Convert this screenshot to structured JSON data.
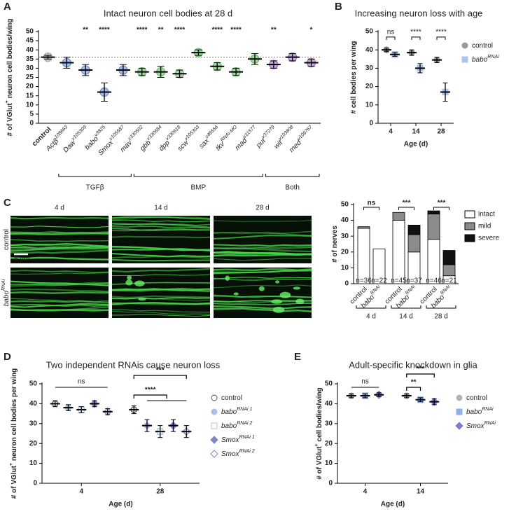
{
  "chart_data": [
    {
      "panel": "A",
      "type": "dotplot",
      "title": "Intact neuron cell bodies at 28 d",
      "ylabel": [
        "# of VGlut",
        "+",
        " neuron cell bodies/wing"
      ],
      "categories": [
        {
          "text": "control"
        },
        {
          "text": "Actβ",
          "sup": "108663"
        },
        {
          "text": "Daw",
          "sup": "v105309"
        },
        {
          "text": "babo",
          "sup": "v3825"
        },
        {
          "text": "Smox",
          "sup": "v105687"
        },
        {
          "text": "mav",
          "sup": "v330502"
        },
        {
          "text": "gbb",
          "sup": "v330684"
        },
        {
          "text": "dpp",
          "sup": "v330618"
        },
        {
          "text": "scw",
          "sup": "v105303"
        },
        {
          "text": "sax",
          "sup": "v46556"
        },
        {
          "text": "tkv",
          "sup": "RNAi-MO"
        },
        {
          "text": "mad",
          "sup": "v11577"
        },
        {
          "text": "put",
          "sup": "v37279"
        },
        {
          "text": "wit",
          "sup": "v103808"
        },
        {
          "text": "med",
          "sup": "v106767"
        }
      ],
      "values": [
        36,
        33,
        29,
        17,
        29,
        28,
        28,
        27,
        38.5,
        31,
        28,
        35,
        32,
        36,
        33
      ],
      "errors": [
        1,
        3,
        3,
        5,
        3,
        2,
        3,
        2,
        1.5,
        2,
        2,
        3,
        2,
        2,
        2
      ],
      "colors": [
        "#a6a6a6",
        "#6a8fd6",
        "#6a8fd6",
        "#6a8fd6",
        "#6a8fd6",
        "#6bbf6b",
        "#6bbf6b",
        "#6bbf6b",
        "#6bbf6b",
        "#6bbf6b",
        "#6bbf6b",
        "#6bbf6b",
        "#a66cc6",
        "#a66cc6",
        "#a66cc6"
      ],
      "significance": [
        null,
        null,
        "**",
        "****",
        null,
        "****",
        "**",
        "****",
        null,
        "****",
        "****",
        null,
        "**",
        null,
        "*"
      ],
      "groups": [
        {
          "label": "TGFβ",
          "color": "#5b7fc7"
        },
        {
          "label": "BMP",
          "color": "#5aa85a"
        },
        {
          "label": "Both",
          "color": "#9b59b6"
        }
      ],
      "reference_line": 36,
      "reference_color": "#e05050",
      "ylim": [
        0,
        50
      ],
      "yticks": [
        0,
        5,
        10,
        15,
        20,
        25,
        30,
        35,
        40,
        45,
        50
      ]
    },
    {
      "panel": "B",
      "type": "dotplot",
      "title": "Increasing neuron loss with age",
      "ylabel": "# cell bodies per wing",
      "xlabel": "Age (d)",
      "categories": [
        "4",
        "14",
        "28"
      ],
      "series": [
        {
          "name": "control",
          "color": "#9a9a9a",
          "marker": "circle",
          "values": [
            40,
            38.5,
            34.5
          ],
          "errors": [
            1,
            1.5,
            1.5
          ]
        },
        {
          "name": "babo",
          "name_sup": "RNAi",
          "color": "#a9c4ee",
          "marker": "square",
          "values": [
            37.5,
            30,
            17
          ],
          "errors": [
            1,
            2.5,
            5
          ]
        }
      ],
      "significance": [
        "ns",
        "****",
        "****"
      ],
      "ylim": [
        0,
        50
      ],
      "yticks": [
        0,
        10,
        20,
        30,
        40,
        50
      ]
    },
    {
      "panel": "C",
      "type": "stacked_bar",
      "ylabel": "# of nerves",
      "categories": [
        {
          "text": "control"
        },
        {
          "text": "babo",
          "sup": "RNAi"
        },
        {
          "text": "control"
        },
        {
          "text": "babo",
          "sup": "RNAi"
        },
        {
          "text": "control"
        },
        {
          "text": "babo",
          "sup": "RNAi"
        }
      ],
      "x_groups": [
        "4 d",
        "14 d",
        "28 d"
      ],
      "n_labels": [
        "n=36",
        "n=22",
        "n=45",
        "n=37",
        "n=46",
        "n=21"
      ],
      "series": [
        {
          "name": "intact",
          "color": "#ffffff",
          "values": [
            35,
            22,
            40,
            20,
            28,
            5
          ]
        },
        {
          "name": "mild",
          "color": "#8c8c8c",
          "values": [
            1,
            0,
            5,
            11,
            16,
            7
          ]
        },
        {
          "name": "severe",
          "color": "#111111",
          "values": [
            0,
            0,
            0,
            6,
            2,
            9
          ]
        }
      ],
      "significance": [
        "ns",
        "***",
        "***"
      ],
      "ylim": [
        0,
        50
      ],
      "yticks": [
        0,
        10,
        20,
        30,
        40,
        50
      ]
    },
    {
      "panel": "D",
      "type": "dotplot",
      "title": "Two independent RNAis cause neuron loss",
      "ylabel": [
        "# of VGlut",
        "+",
        " neuron cell bodies per wing"
      ],
      "xlabel": "Age (d)",
      "categories": [
        "4",
        "28"
      ],
      "series": [
        {
          "name": "control",
          "color": "#555555",
          "marker": "circle-open",
          "values": [
            40,
            37
          ],
          "errors": [
            1.5,
            2
          ]
        },
        {
          "name": "babo",
          "name_sup": "RNAi 1",
          "color": "#a9c1ec",
          "marker": "circle",
          "values": [
            38,
            29
          ],
          "errors": [
            1.5,
            3
          ]
        },
        {
          "name": "babo",
          "name_sup": "RNAi 2",
          "color": "#a9c1ec",
          "marker": "square-open",
          "values": [
            37,
            26
          ],
          "errors": [
            1.5,
            3
          ]
        },
        {
          "name": "Smox",
          "name_sup": "RNAi 1",
          "color": "#7f87c9",
          "marker": "diamond",
          "values": [
            40,
            29
          ],
          "errors": [
            1.5,
            3
          ]
        },
        {
          "name": "Smox",
          "name_sup": "RNAi 2",
          "color": "#7f87c9",
          "marker": "diamond-open",
          "values": [
            36,
            26
          ],
          "errors": [
            1.5,
            3
          ]
        }
      ],
      "annotations": [
        "ns",
        "***",
        "****"
      ],
      "ylim": [
        0,
        50
      ],
      "yticks": [
        0,
        10,
        20,
        30,
        40,
        50
      ]
    },
    {
      "panel": "E",
      "type": "dotplot",
      "title": "Adult-specific knockdown in glia",
      "ylabel": [
        "# of VGlut",
        "+",
        " cell bodies/wing"
      ],
      "xlabel": "Age (d)",
      "categories": [
        "4",
        "14"
      ],
      "series": [
        {
          "name": "control",
          "color": "#b3b3b3",
          "marker": "circle",
          "values": [
            44,
            44
          ],
          "errors": [
            1,
            1
          ]
        },
        {
          "name": "babo",
          "name_sup": "RNAi",
          "color": "#8fb0e4",
          "marker": "square",
          "values": [
            44,
            42
          ],
          "errors": [
            1,
            1
          ]
        },
        {
          "name": "Smox",
          "name_sup": "RNAi",
          "color": "#7b7fd0",
          "marker": "diamond",
          "values": [
            44.5,
            41
          ],
          "errors": [
            1,
            1.5
          ]
        }
      ],
      "annotations": [
        "ns",
        "**",
        "***"
      ],
      "ylim": [
        0,
        50
      ],
      "yticks": [
        0,
        10,
        20,
        30,
        40,
        50
      ]
    }
  ],
  "microscopy": {
    "columns": [
      "4 d",
      "14 d",
      "28 d"
    ],
    "rows": [
      {
        "text": "control"
      },
      {
        "text": "babo",
        "sup": "RNAi"
      }
    ],
    "scale_bar": "5 µm"
  }
}
